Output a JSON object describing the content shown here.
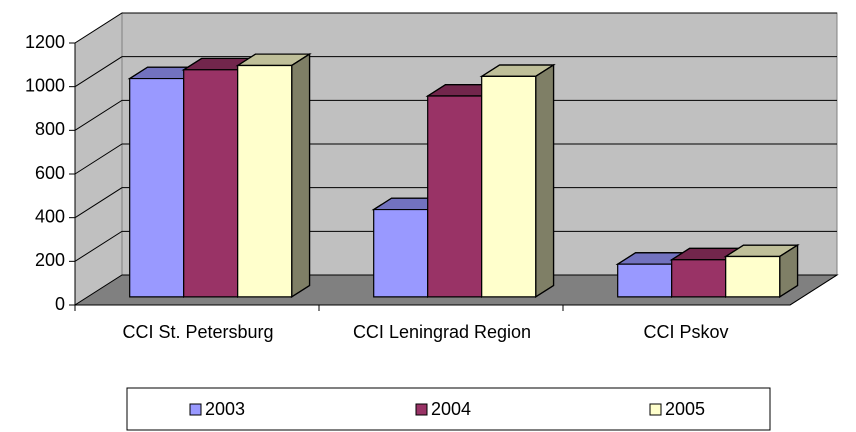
{
  "chart_data": {
    "type": "bar3d",
    "categories": [
      "CCI St. Petersburg",
      "CCI Leningrad Region",
      "CCI Pskov"
    ],
    "series": [
      {
        "name": "2003",
        "color": "#9999ff",
        "values": [
          1000,
          400,
          150
        ]
      },
      {
        "name": "2004",
        "color": "#993366",
        "values": [
          1040,
          920,
          170
        ]
      },
      {
        "name": "2005",
        "color": "#ffffcc",
        "values": [
          1060,
          1010,
          185
        ]
      }
    ],
    "ylim": [
      0,
      1200
    ],
    "yticks": [
      0,
      200,
      400,
      600,
      800,
      1000,
      1200
    ],
    "grid": true,
    "legend": "bottom"
  }
}
